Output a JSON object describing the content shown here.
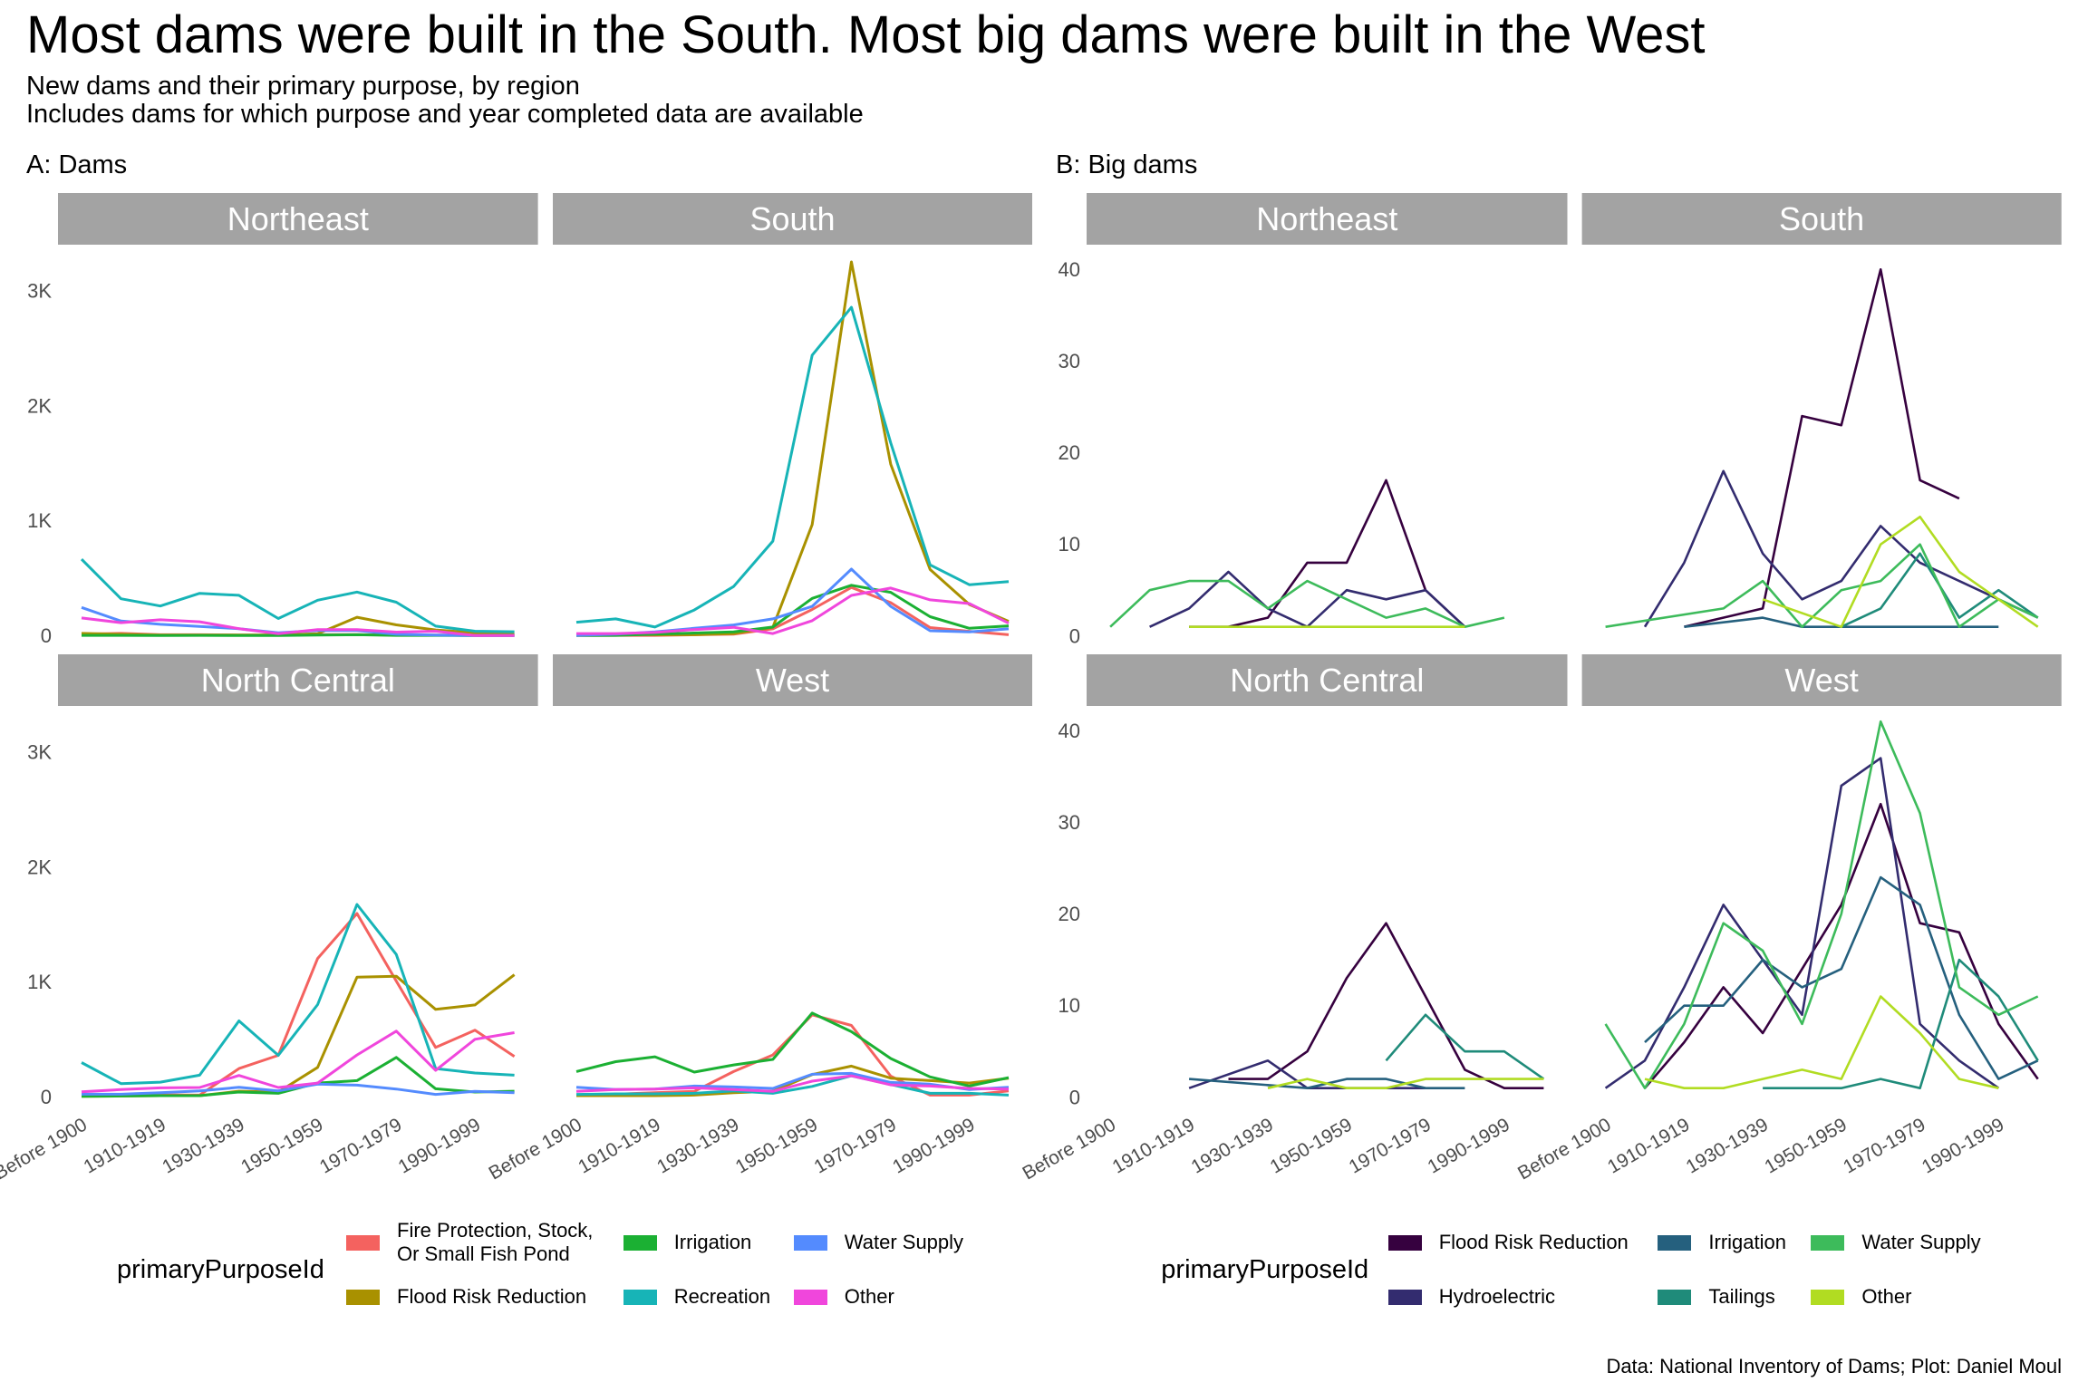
{
  "title": "Most dams were built in the South. Most big dams were built in the West",
  "subtitle_lines": [
    "New dams and their primary purpose, by region",
    "Includes dams for which purpose and year completed data are available"
  ],
  "caption": "Data: National Inventory of Dams; Plot: Daniel Moul",
  "chart_data": [
    {
      "panel_label": "A: Dams",
      "type": "line",
      "facets": [
        "Northeast",
        "South",
        "North Central",
        "West"
      ],
      "categories": [
        "Before 1900",
        "1900-1909",
        "1910-1919",
        "1920-1929",
        "1930-1939",
        "1940-1949",
        "1950-1959",
        "1960-1969",
        "1970-1979",
        "1980-1989",
        "1990-1999",
        "2000-2009"
      ],
      "x_tick_labels": [
        "Before 1900",
        "1910-1919",
        "1930-1939",
        "1950-1959",
        "1970-1979",
        "1990-1999"
      ],
      "y_ticks": [
        0,
        1000,
        2000,
        3000
      ],
      "y_tick_labels": [
        "0",
        "1K",
        "2K",
        "3K"
      ],
      "ylim": [
        -160,
        3400
      ],
      "xlabel": "",
      "ylabel": "",
      "grid": false,
      "legend": {
        "title": "primaryPurposeId",
        "position": "bottom"
      },
      "series": [
        {
          "name": "Fire Protection, Stock, Or Small Fish Pond",
          "legend_lines": [
            "Fire Protection, Stock,",
            "Or Small Fish Pond"
          ],
          "color": "#f4625f",
          "values": {
            "Northeast": [
              15,
              22,
              10,
              10,
              8,
              8,
              10,
              12,
              8,
              8,
              5,
              5
            ],
            "South": [
              3,
              5,
              5,
              10,
              15,
              61,
              230,
              421,
              289,
              72,
              40,
              10
            ],
            "North Central": [
              20,
              20,
              20,
              18,
              249,
              364,
              1206,
              1596,
              1009,
              432,
              582,
              354
            ],
            "West": [
              13,
              26,
              39,
              50,
              223,
              367,
              716,
              624,
              183,
              18,
              18,
              55
            ]
          }
        },
        {
          "name": "Flood Risk Reduction",
          "color": "#a99100",
          "values": {
            "Northeast": [
              22,
              14,
              8,
              8,
              8,
              8,
              19,
              162,
              96,
              52,
              27,
              14
            ],
            "South": [
              10,
              15,
              10,
              10,
              20,
              75,
              967,
              3250,
              1491,
              577,
              273,
              127
            ],
            "North Central": [
              8,
              10,
              13,
              13,
              52,
              45,
              259,
              1043,
              1051,
              763,
              802,
              1064
            ],
            "West": [
              13,
              13,
              13,
              18,
              39,
              52,
              197,
              270,
              165,
              144,
              123,
              165
            ]
          }
        },
        {
          "name": "Irrigation",
          "color": "#1bb033",
          "values": {
            "Northeast": [
              5,
              5,
              3,
              5,
              3,
              3,
              8,
              10,
              5,
              5,
              3,
              3
            ],
            "South": [
              3,
              5,
              15,
              25,
              35,
              77,
              326,
              440,
              379,
              167,
              66,
              87
            ],
            "North Central": [
              8,
              10,
              13,
              13,
              45,
              34,
              123,
              144,
              346,
              73,
              45,
              52
            ],
            "West": [
              223,
              309,
              351,
              218,
              280,
              328,
              731,
              569,
              336,
              176,
              97,
              170
            ]
          }
        },
        {
          "name": "Recreation",
          "color": "#17b4b7",
          "values": {
            "Northeast": [
              666,
              323,
              260,
              370,
              353,
              151,
              310,
              381,
              293,
              85,
              41,
              36
            ],
            "South": [
              119,
              148,
              77,
              225,
              429,
              824,
              2440,
              2856,
              1677,
              617,
              445,
              472
            ],
            "North Central": [
              301,
              118,
              131,
              191,
              663,
              364,
              805,
              1675,
              1240,
              249,
              210,
              191
            ],
            "West": [
              24,
              29,
              29,
              34,
              55,
              34,
              94,
              186,
              110,
              34,
              34,
              18
            ]
          }
        },
        {
          "name": "Water Supply",
          "color": "#548bfe",
          "values": {
            "Northeast": [
              247,
              129,
              101,
              82,
              63,
              27,
              47,
              47,
              14,
              8,
              3,
              3
            ],
            "South": [
              5,
              15,
              35,
              66,
              95,
              148,
              257,
              580,
              257,
              45,
              35,
              61
            ],
            "North Central": [
              26,
              26,
              39,
              55,
              86,
              55,
              113,
              105,
              71,
              24,
              50,
              39
            ],
            "West": [
              86,
              66,
              71,
              97,
              89,
              76,
              199,
              207,
              128,
              113,
              66,
              86
            ]
          }
        },
        {
          "name": "Other",
          "color": "#f046dc",
          "values": {
            "Northeast": [
              156,
              115,
              140,
              123,
              63,
              19,
              55,
              55,
              33,
              41,
              3,
              3
            ],
            "South": [
              20,
              20,
              30,
              55,
              75,
              20,
              132,
              352,
              416,
              313,
              281,
              110
            ],
            "North Central": [
              47,
              66,
              81,
              84,
              189,
              84,
              123,
              367,
              574,
              233,
              503,
              561
            ],
            "West": [
              50,
              66,
              71,
              81,
              66,
              50,
              139,
              186,
              107,
              97,
              76,
              71
            ]
          }
        }
      ]
    },
    {
      "panel_label": "B: Big dams",
      "type": "line",
      "facets": [
        "Northeast",
        "South",
        "North Central",
        "West"
      ],
      "categories": [
        "Before 1900",
        "1900-1909",
        "1910-1919",
        "1920-1929",
        "1930-1939",
        "1940-1949",
        "1950-1959",
        "1960-1969",
        "1970-1979",
        "1980-1989",
        "1990-1999",
        "2000-2009"
      ],
      "x_tick_labels": [
        "Before 1900",
        "1910-1919",
        "1930-1939",
        "1950-1959",
        "1970-1979",
        "1990-1999"
      ],
      "y_ticks": [
        0,
        10,
        20,
        30,
        40
      ],
      "y_tick_labels": [
        "0",
        "10",
        "20",
        "30",
        "40"
      ],
      "ylim": [
        -2,
        42.7
      ],
      "xlabel": "",
      "ylabel": "",
      "grid": false,
      "legend": {
        "title": "primaryPurposeId",
        "position": "bottom"
      },
      "series": [
        {
          "name": "Flood Risk Reduction",
          "color": "#36013f",
          "values": {
            "Northeast": [
              null,
              null,
              1,
              1,
              2,
              8,
              8,
              17,
              5,
              1,
              null,
              null
            ],
            "South": [
              null,
              null,
              1,
              null,
              3,
              24,
              23,
              40,
              17,
              15,
              null,
              null
            ],
            "North Central": [
              null,
              null,
              null,
              2,
              2,
              5,
              13,
              19,
              11,
              3,
              1,
              1
            ],
            "West": [
              null,
              1,
              6,
              12,
              7,
              14,
              21,
              32,
              19,
              18,
              8,
              2
            ]
          }
        },
        {
          "name": "Hydroelectric",
          "color": "#332c6f",
          "values": {
            "Northeast": [
              null,
              1,
              3,
              7,
              3,
              1,
              5,
              4,
              5,
              1,
              null,
              null
            ],
            "South": [
              null,
              1,
              8,
              18,
              9,
              4,
              6,
              12,
              8,
              6,
              4,
              2
            ],
            "North Central": [
              null,
              null,
              1,
              null,
              4,
              1,
              1,
              1,
              1,
              null,
              null,
              null
            ],
            "West": [
              1,
              4,
              12,
              21,
              15,
              9,
              34,
              37,
              8,
              4,
              1,
              null
            ]
          }
        },
        {
          "name": "Irrigation",
          "color": "#25607e",
          "values": {
            "Northeast": [
              null,
              null,
              null,
              null,
              null,
              null,
              null,
              null,
              null,
              null,
              null,
              null
            ],
            "South": [
              null,
              null,
              1,
              null,
              2,
              1,
              1,
              1,
              1,
              1,
              1,
              null
            ],
            "North Central": [
              null,
              null,
              2,
              null,
              null,
              1,
              2,
              2,
              1,
              1,
              null,
              null
            ],
            "West": [
              null,
              6,
              10,
              10,
              15,
              12,
              14,
              24,
              21,
              9,
              2,
              4
            ]
          }
        },
        {
          "name": "Tailings",
          "color": "#1f8b7a",
          "values": {
            "Northeast": [
              null,
              null,
              null,
              null,
              null,
              null,
              null,
              null,
              null,
              null,
              null,
              null
            ],
            "South": [
              null,
              null,
              null,
              null,
              null,
              null,
              1,
              3,
              9,
              2,
              5,
              2
            ],
            "North Central": [
              null,
              null,
              null,
              null,
              null,
              null,
              null,
              4,
              9,
              5,
              5,
              2
            ],
            "West": [
              null,
              null,
              null,
              null,
              1,
              1,
              1,
              2,
              1,
              15,
              11,
              4
            ]
          }
        },
        {
          "name": "Water Supply",
          "color": "#3dbb5b",
          "values": {
            "Northeast": [
              1,
              5,
              6,
              6,
              3,
              6,
              4,
              2,
              3,
              1,
              2,
              null
            ],
            "South": [
              1,
              null,
              null,
              3,
              6,
              1,
              5,
              6,
              10,
              1,
              4,
              2
            ],
            "North Central": [
              null,
              null,
              null,
              null,
              null,
              null,
              null,
              null,
              null,
              null,
              null,
              null
            ],
            "West": [
              8,
              1,
              8,
              19,
              16,
              8,
              20,
              41,
              31,
              12,
              9,
              11
            ]
          }
        },
        {
          "name": "Other",
          "color": "#b1dc22",
          "values": {
            "Northeast": [
              null,
              null,
              1,
              1,
              1,
              1,
              1,
              1,
              1,
              1,
              null,
              null
            ],
            "South": [
              null,
              null,
              null,
              null,
              4,
              null,
              1,
              10,
              13,
              7,
              4,
              1
            ],
            "North Central": [
              null,
              null,
              null,
              null,
              1,
              2,
              1,
              1,
              2,
              2,
              2,
              2
            ],
            "West": [
              null,
              2,
              1,
              1,
              2,
              3,
              2,
              11,
              7,
              2,
              1,
              null
            ]
          }
        }
      ]
    }
  ]
}
